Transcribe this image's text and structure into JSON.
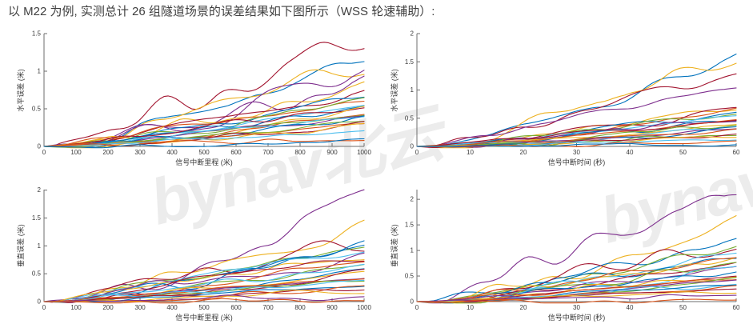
{
  "page": {
    "title": "以 M22 为例, 实测总计 26 组隧道场景的误差结果如下图所示（WSS 轮速辅助）:"
  },
  "watermark": {
    "text": "bynav北云",
    "color": "#ececec"
  },
  "palette": [
    "#0072BD",
    "#D95319",
    "#EDB120",
    "#7E2F8E",
    "#77AC30",
    "#4DBEEE",
    "#A2142F"
  ],
  "axis": {
    "line_color": "#6e6e6e",
    "text_color": "#3a3a3a"
  },
  "chart_data": [
    {
      "id": "horizontal_error_vs_distance",
      "type": "line",
      "xlabel": "信号中断里程 (米)",
      "ylabel": "水平误差 (米)",
      "xlim": [
        0,
        1000
      ],
      "ylim": [
        0,
        1.5
      ],
      "xticks": [
        0,
        100,
        200,
        300,
        400,
        500,
        600,
        700,
        800,
        900,
        1000
      ],
      "yticks": [
        0,
        0.5,
        1,
        1.5
      ],
      "grid": false,
      "legend": false,
      "n_series": 26,
      "series": [
        {
          "color": 6,
          "end": 1.25
        },
        {
          "color": 0,
          "end": 1.2
        },
        {
          "color": 2,
          "end": 1.15
        },
        {
          "color": 3,
          "end": 0.97
        },
        {
          "color": 3,
          "end": 0.9
        },
        {
          "color": 2,
          "end": 0.84
        },
        {
          "color": 6,
          "end": 0.68
        },
        {
          "color": 0,
          "end": 0.65
        },
        {
          "color": 1,
          "end": 0.6
        },
        {
          "color": 4,
          "end": 0.58
        },
        {
          "color": 5,
          "end": 0.55
        },
        {
          "color": 0,
          "end": 0.52
        },
        {
          "color": 6,
          "end": 0.5
        },
        {
          "color": 2,
          "end": 0.48
        },
        {
          "color": 1,
          "end": 0.45
        },
        {
          "color": 4,
          "end": 0.42
        },
        {
          "color": 3,
          "end": 0.4
        },
        {
          "color": 5,
          "end": 0.38
        },
        {
          "color": 0,
          "end": 0.35
        },
        {
          "color": 1,
          "end": 0.32
        },
        {
          "color": 4,
          "end": 0.3
        },
        {
          "color": 6,
          "end": 0.28
        },
        {
          "color": 2,
          "end": 0.25
        },
        {
          "color": 5,
          "end": 0.2
        },
        {
          "color": 1,
          "end": 0.12
        },
        {
          "color": 0,
          "end": 0.05
        }
      ]
    },
    {
      "id": "horizontal_error_vs_time",
      "type": "line",
      "xlabel": "信号中断时间 (秒)",
      "ylabel": "水平误差 (米)",
      "xlim": [
        0,
        60
      ],
      "ylim": [
        0,
        2
      ],
      "xticks": [
        0,
        10,
        20,
        30,
        40,
        50,
        60
      ],
      "yticks": [
        0,
        0.5,
        1,
        1.5,
        2
      ],
      "grid": false,
      "legend": false,
      "n_series": 26,
      "series": [
        {
          "color": 0,
          "end": 1.62
        },
        {
          "color": 2,
          "end": 1.45
        },
        {
          "color": 6,
          "end": 1.35
        },
        {
          "color": 3,
          "end": 1.08
        },
        {
          "color": 2,
          "end": 0.7
        },
        {
          "color": 1,
          "end": 0.66
        },
        {
          "color": 6,
          "end": 0.62
        },
        {
          "color": 0,
          "end": 0.6
        },
        {
          "color": 4,
          "end": 0.57
        },
        {
          "color": 5,
          "end": 0.54
        },
        {
          "color": 3,
          "end": 0.5
        },
        {
          "color": 0,
          "end": 0.48
        },
        {
          "color": 1,
          "end": 0.45
        },
        {
          "color": 6,
          "end": 0.42
        },
        {
          "color": 2,
          "end": 0.4
        },
        {
          "color": 4,
          "end": 0.38
        },
        {
          "color": 5,
          "end": 0.35
        },
        {
          "color": 3,
          "end": 0.32
        },
        {
          "color": 0,
          "end": 0.3
        },
        {
          "color": 1,
          "end": 0.27
        },
        {
          "color": 4,
          "end": 0.24
        },
        {
          "color": 6,
          "end": 0.22
        },
        {
          "color": 2,
          "end": 0.18
        },
        {
          "color": 5,
          "end": 0.15
        },
        {
          "color": 1,
          "end": 0.1
        },
        {
          "color": 0,
          "end": 0.04
        }
      ]
    },
    {
      "id": "vertical_error_vs_distance",
      "type": "line",
      "xlabel": "信号中断里程 (米)",
      "ylabel": "垂直误差 (米)",
      "xlim": [
        0,
        1000
      ],
      "ylim": [
        0,
        2.01
      ],
      "xticks": [
        0,
        100,
        200,
        300,
        400,
        500,
        600,
        700,
        800,
        900,
        1000
      ],
      "yticks": [
        0,
        0.5,
        1,
        1.5,
        2
      ],
      "grid": false,
      "legend": false,
      "n_series": 26,
      "series": [
        {
          "color": 3,
          "end": 1.85
        },
        {
          "color": 2,
          "end": 1.42
        },
        {
          "color": 6,
          "end": 1.15
        },
        {
          "color": 4,
          "end": 1.05
        },
        {
          "color": 0,
          "end": 1.0
        },
        {
          "color": 5,
          "end": 0.95
        },
        {
          "color": 0,
          "end": 0.9
        },
        {
          "color": 2,
          "end": 0.85
        },
        {
          "color": 3,
          "end": 0.8
        },
        {
          "color": 6,
          "end": 0.75
        },
        {
          "color": 1,
          "end": 0.7
        },
        {
          "color": 4,
          "end": 0.65
        },
        {
          "color": 5,
          "end": 0.6
        },
        {
          "color": 0,
          "end": 0.55
        },
        {
          "color": 2,
          "end": 0.52
        },
        {
          "color": 6,
          "end": 0.48
        },
        {
          "color": 3,
          "end": 0.45
        },
        {
          "color": 1,
          "end": 0.42
        },
        {
          "color": 4,
          "end": 0.38
        },
        {
          "color": 5,
          "end": 0.35
        },
        {
          "color": 0,
          "end": 0.3
        },
        {
          "color": 1,
          "end": 0.26
        },
        {
          "color": 6,
          "end": 0.22
        },
        {
          "color": 2,
          "end": 0.18
        },
        {
          "color": 3,
          "end": 0.12
        },
        {
          "color": 1,
          "end": 0.05
        }
      ]
    },
    {
      "id": "vertical_error_vs_time",
      "type": "line",
      "xlabel": "信号中断时间 (秒)",
      "ylabel": "垂直误差 (米)",
      "xlim": [
        0,
        60
      ],
      "ylim": [
        0,
        2.19
      ],
      "xticks": [
        0,
        10,
        20,
        30,
        40,
        50,
        60
      ],
      "yticks": [
        0,
        0.5,
        1,
        1.5,
        2
      ],
      "grid": false,
      "legend": false,
      "n_series": 26,
      "series": [
        {
          "color": 3,
          "end": 2.15
        },
        {
          "color": 2,
          "end": 1.55
        },
        {
          "color": 0,
          "end": 1.2
        },
        {
          "color": 6,
          "end": 1.18
        },
        {
          "color": 4,
          "end": 1.15
        },
        {
          "color": 5,
          "end": 1.0
        },
        {
          "color": 0,
          "end": 0.95
        },
        {
          "color": 2,
          "end": 0.9
        },
        {
          "color": 6,
          "end": 0.85
        },
        {
          "color": 1,
          "end": 0.8
        },
        {
          "color": 4,
          "end": 0.75
        },
        {
          "color": 3,
          "end": 0.7
        },
        {
          "color": 5,
          "end": 0.65
        },
        {
          "color": 0,
          "end": 0.6
        },
        {
          "color": 2,
          "end": 0.55
        },
        {
          "color": 6,
          "end": 0.52
        },
        {
          "color": 1,
          "end": 0.48
        },
        {
          "color": 4,
          "end": 0.45
        },
        {
          "color": 3,
          "end": 0.4
        },
        {
          "color": 5,
          "end": 0.36
        },
        {
          "color": 0,
          "end": 0.32
        },
        {
          "color": 1,
          "end": 0.28
        },
        {
          "color": 6,
          "end": 0.24
        },
        {
          "color": 2,
          "end": 0.2
        },
        {
          "color": 3,
          "end": 0.14
        },
        {
          "color": 1,
          "end": 0.05
        }
      ]
    }
  ]
}
